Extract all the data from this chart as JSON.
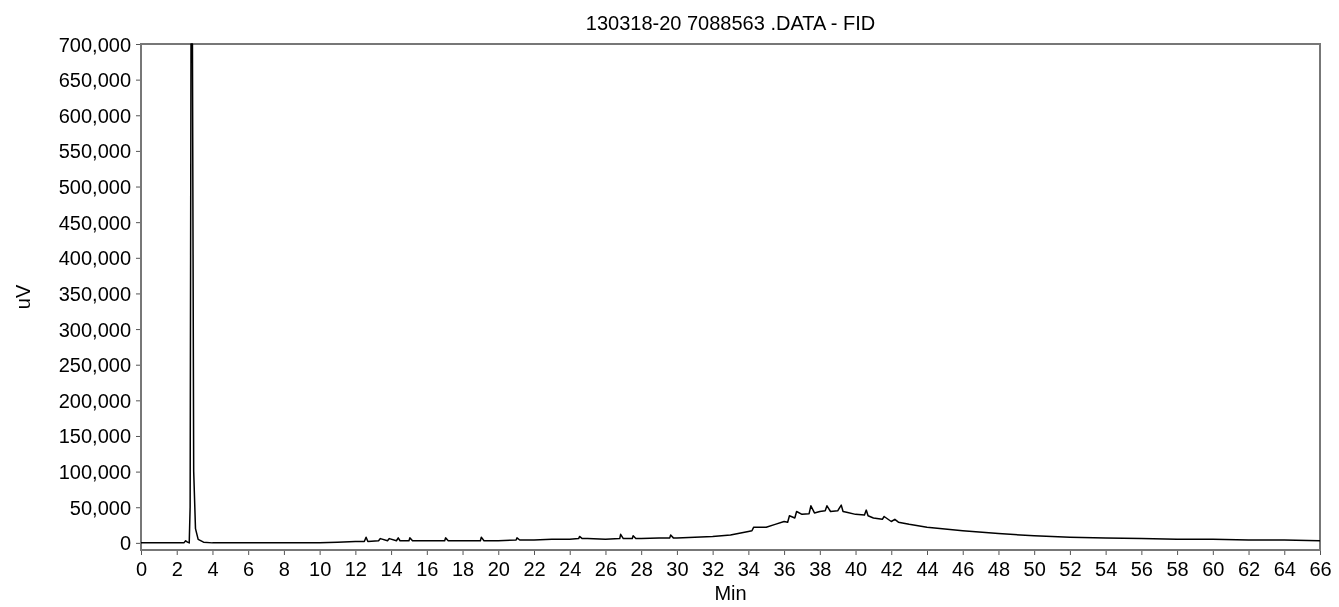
{
  "chart_data": {
    "type": "line",
    "title": "130318-20 7088563 .DATA - FID",
    "xlabel": "Min",
    "ylabel": "uV",
    "xlim": [
      0,
      66
    ],
    "xticks": [
      0,
      2,
      4,
      6,
      8,
      10,
      12,
      14,
      16,
      18,
      20,
      22,
      24,
      26,
      28,
      30,
      32,
      34,
      36,
      38,
      40,
      42,
      44,
      46,
      48,
      50,
      52,
      54,
      56,
      58,
      60,
      62,
      64,
      66
    ],
    "ylim": [
      -10000,
      700000
    ],
    "yticks": [
      0,
      {
        "value": 50000,
        "label": "50,000"
      },
      {
        "value": 100000,
        "label": "100,000"
      },
      {
        "value": 150000,
        "label": "150,000"
      },
      {
        "value": 200000,
        "label": "200,000"
      },
      {
        "value": 250000,
        "label": "250,000"
      },
      {
        "value": 300000,
        "label": "300,000"
      },
      {
        "value": 350000,
        "label": "350,000"
      },
      {
        "value": 400000,
        "label": "400,000"
      },
      {
        "value": 450000,
        "label": "450,000"
      },
      {
        "value": 500000,
        "label": "500,000"
      },
      {
        "value": 550000,
        "label": "550,000"
      },
      {
        "value": 600000,
        "label": "600,000"
      },
      {
        "value": 650000,
        "label": "650,000"
      },
      {
        "value": 700000,
        "label": "700,000"
      }
    ],
    "line_style": "solid",
    "series": [
      {
        "color": "#000000",
        "x": [
          0,
          2.4,
          2.5,
          2.6,
          2.7,
          2.75,
          2.8,
          2.88,
          2.95,
          3.05,
          3.2,
          3.5,
          4,
          10,
          11,
          12,
          12.5,
          12.6,
          12.7,
          13.3,
          13.4,
          13.8,
          13.9,
          14.3,
          14.4,
          14.5,
          15,
          15.05,
          15.2,
          16,
          17,
          17.05,
          17.2,
          18,
          19,
          19.05,
          19.2,
          20,
          21,
          21.05,
          21.2,
          22,
          23,
          24,
          24.5,
          24.55,
          24.7,
          25,
          26,
          26.8,
          26.85,
          27,
          27.5,
          27.55,
          27.7,
          28,
          29,
          29.6,
          29.65,
          29.8,
          30,
          31,
          32,
          33,
          34,
          34.2,
          34.3,
          35,
          35.5,
          36,
          36.2,
          36.3,
          36.6,
          36.7,
          37,
          37.4,
          37.5,
          37.7,
          38,
          38.3,
          38.4,
          38.6,
          39,
          39.2,
          39.3,
          39.5,
          40,
          40.5,
          40.6,
          40.7,
          41,
          41.5,
          41.6,
          42,
          42.2,
          42.4,
          43,
          44,
          46,
          48,
          50,
          52,
          54,
          56,
          58,
          60,
          62,
          64,
          66
        ],
        "values": [
          0,
          0,
          3000,
          1000,
          0,
          50000,
          700000,
          700000,
          100000,
          20000,
          5000,
          1000,
          0,
          0,
          1000,
          2000,
          2000,
          8000,
          2000,
          3000,
          6000,
          3000,
          6000,
          3000,
          7000,
          3000,
          3000,
          7000,
          3000,
          3000,
          3000,
          7000,
          3000,
          3000,
          3000,
          8000,
          3000,
          3000,
          4000,
          7000,
          4000,
          4000,
          5000,
          5000,
          6000,
          9000,
          6000,
          6000,
          5000,
          6000,
          12000,
          6000,
          6000,
          10000,
          6000,
          6000,
          7000,
          7000,
          11000,
          7000,
          7000,
          8000,
          9000,
          11000,
          16000,
          17000,
          22000,
          22000,
          26000,
          30000,
          29000,
          38000,
          35000,
          44000,
          40000,
          41000,
          52000,
          42000,
          44000,
          45000,
          52000,
          44000,
          45000,
          53000,
          44000,
          43000,
          40000,
          39000,
          46000,
          38000,
          35000,
          33000,
          37000,
          30000,
          33000,
          29000,
          26000,
          22000,
          17000,
          13000,
          10000,
          8000,
          7000,
          6000,
          5000,
          5000,
          4000,
          4000,
          3000
        ]
      }
    ]
  }
}
